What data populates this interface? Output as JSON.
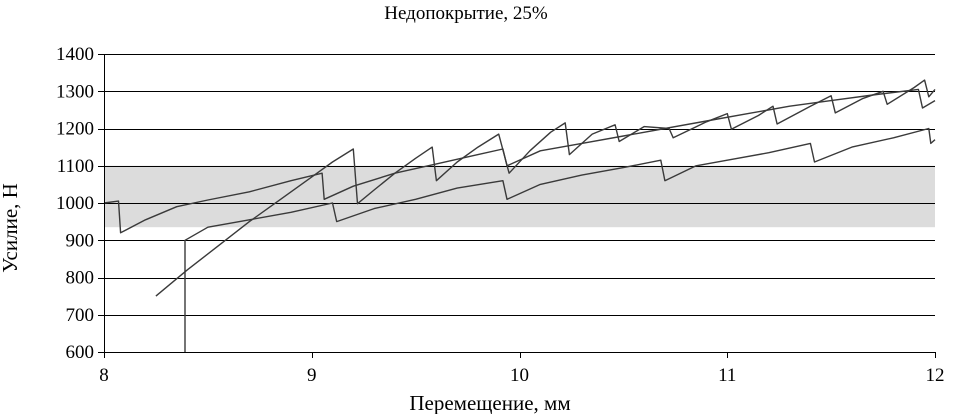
{
  "chart_data": {
    "type": "line",
    "title": "Недопокрытие, 25%",
    "xlabel": "Перемещение, мм",
    "ylabel": "Усилие, Н",
    "xlim": [
      8,
      12
    ],
    "ylim": [
      600,
      1400
    ],
    "xticks": [
      8,
      9,
      10,
      11,
      12
    ],
    "yticks": [
      600,
      700,
      800,
      900,
      1000,
      1100,
      1200,
      1300,
      1400
    ],
    "xtick_labels": [
      "8",
      "9",
      "10",
      "11",
      "12"
    ],
    "ytick_labels": [
      "600",
      "700",
      "800",
      "900",
      "1000",
      "1100",
      "1200",
      "1300",
      "1400"
    ],
    "grid": true,
    "band": {
      "y": [
        935,
        1100
      ],
      "color": "#dcdcdc"
    },
    "line_color": "#3a3a3a",
    "axis_color": "#000000",
    "series": [
      {
        "points": [
          [
            8.0,
            1000
          ],
          [
            8.07,
            1005
          ],
          [
            8.08,
            920
          ],
          [
            8.2,
            955
          ],
          [
            8.35,
            990
          ],
          [
            8.5,
            1008
          ],
          [
            8.7,
            1030
          ],
          [
            8.9,
            1060
          ],
          [
            9.05,
            1080
          ],
          [
            9.06,
            1010
          ],
          [
            9.2,
            1045
          ],
          [
            9.4,
            1080
          ],
          [
            9.6,
            1105
          ],
          [
            9.8,
            1130
          ],
          [
            9.92,
            1145
          ],
          [
            9.94,
            1100
          ],
          [
            10.1,
            1140
          ],
          [
            10.3,
            1160
          ],
          [
            10.5,
            1180
          ],
          [
            10.7,
            1200
          ],
          [
            10.9,
            1220
          ],
          [
            11.1,
            1240
          ],
          [
            11.3,
            1260
          ],
          [
            11.5,
            1275
          ],
          [
            11.7,
            1290
          ],
          [
            11.92,
            1305
          ],
          [
            11.94,
            1255
          ],
          [
            12.0,
            1275
          ]
        ]
      },
      {
        "points": [
          [
            8.25,
            750
          ],
          [
            8.4,
            820
          ],
          [
            8.55,
            885
          ],
          [
            8.7,
            950
          ],
          [
            8.85,
            1010
          ],
          [
            9.0,
            1070
          ],
          [
            9.1,
            1110
          ],
          [
            9.2,
            1145
          ],
          [
            9.22,
            998
          ],
          [
            9.3,
            1035
          ],
          [
            9.4,
            1080
          ],
          [
            9.5,
            1120
          ],
          [
            9.58,
            1150
          ],
          [
            9.6,
            1060
          ],
          [
            9.7,
            1110
          ],
          [
            9.8,
            1150
          ],
          [
            9.9,
            1185
          ],
          [
            9.95,
            1080
          ],
          [
            10.05,
            1140
          ],
          [
            10.15,
            1190
          ],
          [
            10.22,
            1215
          ],
          [
            10.24,
            1130
          ],
          [
            10.35,
            1185
          ],
          [
            10.46,
            1210
          ],
          [
            10.48,
            1165
          ],
          [
            10.6,
            1205
          ],
          [
            10.72,
            1200
          ],
          [
            10.74,
            1175
          ],
          [
            10.9,
            1218
          ],
          [
            11.0,
            1240
          ],
          [
            11.02,
            1198
          ],
          [
            11.15,
            1235
          ],
          [
            11.22,
            1260
          ],
          [
            11.24,
            1212
          ],
          [
            11.4,
            1260
          ],
          [
            11.5,
            1288
          ],
          [
            11.52,
            1242
          ],
          [
            11.65,
            1280
          ],
          [
            11.75,
            1300
          ],
          [
            11.77,
            1265
          ],
          [
            11.9,
            1310
          ],
          [
            11.95,
            1330
          ],
          [
            11.97,
            1285
          ],
          [
            12.0,
            1305
          ]
        ]
      },
      {
        "points": [
          [
            8.39,
            600
          ],
          [
            8.39,
            900
          ],
          [
            8.5,
            935
          ],
          [
            8.7,
            955
          ],
          [
            8.9,
            975
          ],
          [
            9.1,
            1000
          ],
          [
            9.12,
            950
          ],
          [
            9.3,
            985
          ],
          [
            9.5,
            1010
          ],
          [
            9.7,
            1040
          ],
          [
            9.92,
            1060
          ],
          [
            9.94,
            1010
          ],
          [
            10.1,
            1050
          ],
          [
            10.3,
            1075
          ],
          [
            10.5,
            1095
          ],
          [
            10.68,
            1115
          ],
          [
            10.7,
            1060
          ],
          [
            10.85,
            1100
          ],
          [
            11.0,
            1115
          ],
          [
            11.2,
            1135
          ],
          [
            11.4,
            1160
          ],
          [
            11.42,
            1110
          ],
          [
            11.6,
            1150
          ],
          [
            11.8,
            1175
          ],
          [
            11.97,
            1200
          ],
          [
            11.98,
            1160
          ],
          [
            12.0,
            1170
          ]
        ]
      }
    ]
  }
}
